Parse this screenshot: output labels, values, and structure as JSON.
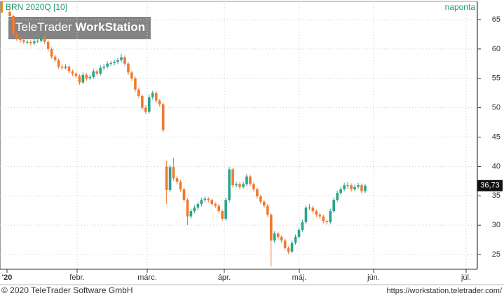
{
  "chart_data": {
    "type": "candlestick",
    "title": "BRN 2020Q [10]",
    "interval": "naponta",
    "watermark": [
      "TeleTrader",
      "WorkStation"
    ],
    "footer_left": "© 2020 TeleTrader Software GmbH",
    "footer_right": "https://workstation.teletrader.com/",
    "x_labels": [
      "'20",
      "febr.",
      "márc.",
      "ápr.",
      "máj.",
      "jún.",
      "júl."
    ],
    "ylim": [
      22.5,
      68.1
    ],
    "yticks": [
      25,
      30,
      35,
      40,
      45,
      50,
      55,
      60,
      65
    ],
    "grid": true,
    "up_color": "#2aa58a",
    "down_color": "#f07a30",
    "last_label": "36,73",
    "candles": [
      [
        66.3,
        67.5,
        65.0,
        65.6
      ],
      [
        65.6,
        65.8,
        62.0,
        62.5
      ],
      [
        62.5,
        62.9,
        61.4,
        61.9
      ],
      [
        61.9,
        62.2,
        61.0,
        61.5
      ],
      [
        61.5,
        61.8,
        60.8,
        61.2
      ],
      [
        61.2,
        61.6,
        60.8,
        61.2
      ],
      [
        61.2,
        61.5,
        60.6,
        61.0
      ],
      [
        61.0,
        61.7,
        60.7,
        61.3
      ],
      [
        61.3,
        61.8,
        61.0,
        61.4
      ],
      [
        61.4,
        62.5,
        61.1,
        62.0
      ],
      [
        62.0,
        62.3,
        60.8,
        61.2
      ],
      [
        61.2,
        61.5,
        59.6,
        60.0
      ],
      [
        60.0,
        60.3,
        58.3,
        58.7
      ],
      [
        58.7,
        59.0,
        57.7,
        58.1
      ],
      [
        58.1,
        58.4,
        56.6,
        57.0
      ],
      [
        57.0,
        57.4,
        56.4,
        56.8
      ],
      [
        56.8,
        57.4,
        56.5,
        57.0
      ],
      [
        57.0,
        57.3,
        55.8,
        56.2
      ],
      [
        56.2,
        56.5,
        55.4,
        55.8
      ],
      [
        55.8,
        56.1,
        55.0,
        55.4
      ],
      [
        55.4,
        55.7,
        53.9,
        54.3
      ],
      [
        54.3,
        56.0,
        54.0,
        55.6
      ],
      [
        55.6,
        55.9,
        54.6,
        55.0
      ],
      [
        55.0,
        55.6,
        54.7,
        55.2
      ],
      [
        55.2,
        56.6,
        54.9,
        56.2
      ],
      [
        56.2,
        56.5,
        55.4,
        55.8
      ],
      [
        55.8,
        57.2,
        55.5,
        56.8
      ],
      [
        56.8,
        57.4,
        56.4,
        57.0
      ],
      [
        57.0,
        57.9,
        56.7,
        57.5
      ],
      [
        57.5,
        58.0,
        57.1,
        57.6
      ],
      [
        57.6,
        58.2,
        57.2,
        57.8
      ],
      [
        57.8,
        58.5,
        57.4,
        58.1
      ],
      [
        58.1,
        59.2,
        57.8,
        58.6
      ],
      [
        58.6,
        58.9,
        57.1,
        57.5
      ],
      [
        57.5,
        57.8,
        55.6,
        56.0
      ],
      [
        56.0,
        56.3,
        54.6,
        55.0
      ],
      [
        55.0,
        55.3,
        52.7,
        53.1
      ],
      [
        53.1,
        53.4,
        51.6,
        52.0
      ],
      [
        52.0,
        52.3,
        49.6,
        50.0
      ],
      [
        50.0,
        50.4,
        48.9,
        49.3
      ],
      [
        49.3,
        52.2,
        49.0,
        51.8
      ],
      [
        51.8,
        52.9,
        51.4,
        52.5
      ],
      [
        52.5,
        52.8,
        50.8,
        51.2
      ],
      [
        51.2,
        51.5,
        50.2,
        50.6
      ],
      [
        50.6,
        50.9,
        45.8,
        46.2
      ],
      [
        40.0,
        41.0,
        33.6,
        36.0
      ],
      [
        36.0,
        40.3,
        35.6,
        39.9
      ],
      [
        39.9,
        41.5,
        37.6,
        38.0
      ],
      [
        38.0,
        38.4,
        37.0,
        37.4
      ],
      [
        37.4,
        37.7,
        35.7,
        36.1
      ],
      [
        36.1,
        36.4,
        33.9,
        34.3
      ],
      [
        34.3,
        34.6,
        30.0,
        31.5
      ],
      [
        31.5,
        32.8,
        31.1,
        32.4
      ],
      [
        32.4,
        33.4,
        32.0,
        33.0
      ],
      [
        33.0,
        34.0,
        32.6,
        33.6
      ],
      [
        33.6,
        34.7,
        33.2,
        34.3
      ],
      [
        34.3,
        34.9,
        33.9,
        34.5
      ],
      [
        34.5,
        34.8,
        33.9,
        34.3
      ],
      [
        34.3,
        34.6,
        33.2,
        33.6
      ],
      [
        33.6,
        33.9,
        32.9,
        33.3
      ],
      [
        33.3,
        33.6,
        32.0,
        32.4
      ],
      [
        32.4,
        32.7,
        30.7,
        31.1
      ],
      [
        31.1,
        34.7,
        30.8,
        34.3
      ],
      [
        34.3,
        39.9,
        33.9,
        39.5
      ],
      [
        39.5,
        39.8,
        36.4,
        36.8
      ],
      [
        36.8,
        37.4,
        36.4,
        37.0
      ],
      [
        37.0,
        37.3,
        36.1,
        36.5
      ],
      [
        36.5,
        37.4,
        36.2,
        37.0
      ],
      [
        37.0,
        38.7,
        36.7,
        38.3
      ],
      [
        38.3,
        38.6,
        36.6,
        37.0
      ],
      [
        37.0,
        37.3,
        35.7,
        36.1
      ],
      [
        36.1,
        36.4,
        34.5,
        34.9
      ],
      [
        34.9,
        35.2,
        33.6,
        34.0
      ],
      [
        34.0,
        34.3,
        32.9,
        33.3
      ],
      [
        33.3,
        33.6,
        31.4,
        31.8
      ],
      [
        31.8,
        32.1,
        23.0,
        27.4
      ],
      [
        27.4,
        29.0,
        27.0,
        28.6
      ],
      [
        28.6,
        28.9,
        27.6,
        28.0
      ],
      [
        28.0,
        28.3,
        27.0,
        27.4
      ],
      [
        27.4,
        27.7,
        25.7,
        26.1
      ],
      [
        26.1,
        26.4,
        25.1,
        25.5
      ],
      [
        25.5,
        27.4,
        25.2,
        27.0
      ],
      [
        27.0,
        28.4,
        26.7,
        28.0
      ],
      [
        28.0,
        29.6,
        27.7,
        29.2
      ],
      [
        29.2,
        30.9,
        28.9,
        30.5
      ],
      [
        30.5,
        33.4,
        30.2,
        33.0
      ],
      [
        33.0,
        33.6,
        32.6,
        33.0
      ],
      [
        33.0,
        33.3,
        32.0,
        32.4
      ],
      [
        32.4,
        32.7,
        31.4,
        31.8
      ],
      [
        31.8,
        32.1,
        31.1,
        31.5
      ],
      [
        31.5,
        31.8,
        30.3,
        30.7
      ],
      [
        30.7,
        31.0,
        30.1,
        30.5
      ],
      [
        30.5,
        32.8,
        30.2,
        32.4
      ],
      [
        32.4,
        34.7,
        32.1,
        34.3
      ],
      [
        34.3,
        35.9,
        34.0,
        35.5
      ],
      [
        35.5,
        36.5,
        35.2,
        36.1
      ],
      [
        36.1,
        37.2,
        35.8,
        36.8
      ],
      [
        36.8,
        37.3,
        36.2,
        36.8
      ],
      [
        36.8,
        37.1,
        35.7,
        36.1
      ],
      [
        36.1,
        36.9,
        35.8,
        36.5
      ],
      [
        36.5,
        37.2,
        36.2,
        36.8
      ],
      [
        36.8,
        37.1,
        35.4,
        35.8
      ],
      [
        35.8,
        37.0,
        35.5,
        36.73
      ]
    ]
  }
}
